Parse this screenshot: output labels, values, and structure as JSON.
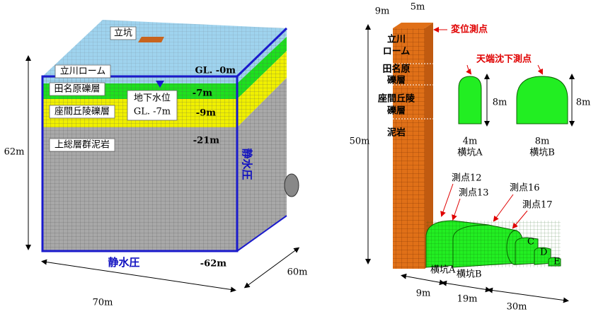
{
  "left_model": {
    "shaft": "立坑",
    "layers": [
      "立川ローム",
      "田名原礫層",
      "座間丘陵礫層",
      "上総層群泥岩"
    ],
    "depths": [
      "GL. -0m",
      "-7m",
      "-9m",
      "-21m",
      "-62m"
    ],
    "water_table": [
      "地下水位",
      "GL. -7m"
    ],
    "pressure_side": "静水圧",
    "pressure_bottom": "静水圧",
    "dims": {
      "height": "62m",
      "width": "70m",
      "depth": "60m"
    }
  },
  "right_model": {
    "column_dims": [
      "9m",
      "5m"
    ],
    "displacement_point": "変位測点",
    "strata": [
      [
        "立川",
        "ローム"
      ],
      [
        "田名原",
        "礫層"
      ],
      [
        "座間丘陵",
        "礫層"
      ],
      [
        "泥岩"
      ]
    ],
    "column_height": "50m",
    "crown_point": "天端沈下測点",
    "tunnel_a": {
      "height": "8m",
      "width": "4m",
      "name": "横坑A"
    },
    "tunnel_b": {
      "height": "8m",
      "width": "8m",
      "name": "横坑B"
    },
    "points": [
      "測点12",
      "測点13",
      "測点16",
      "測点17"
    ],
    "sections": [
      "C",
      "D",
      "E"
    ],
    "tunnel_labels": [
      "横坑A",
      "横坑B"
    ],
    "lengths": [
      "9m",
      "19m",
      "30m"
    ]
  }
}
